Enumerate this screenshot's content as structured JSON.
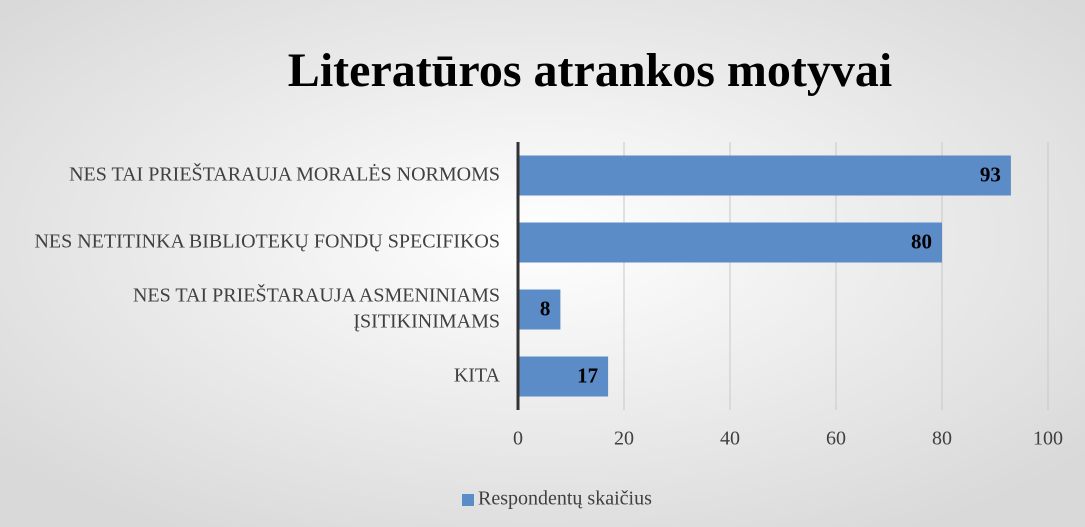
{
  "chart_data": {
    "type": "bar",
    "orientation": "horizontal",
    "title": "Literatūros atrankos motyvai",
    "categories": [
      "NES TAI PRIEŠTARAUJA MORALĖS NORMOMS",
      "NES NETITINKA BIBLIOTEKŲ FONDŲ SPECIFIKOS",
      "NES TAI PRIEŠTARAUJA ASMENINIAMS ĮSITIKINIMAMS",
      "KITA"
    ],
    "series": [
      {
        "name": "Respondentų skaičius",
        "color": "#5b8cc8",
        "values": [
          93,
          80,
          8,
          17
        ]
      }
    ],
    "xlim": [
      0,
      100
    ],
    "xticks": [
      0,
      20,
      40,
      60,
      80,
      100
    ],
    "grid": true,
    "legend": "bottom"
  }
}
